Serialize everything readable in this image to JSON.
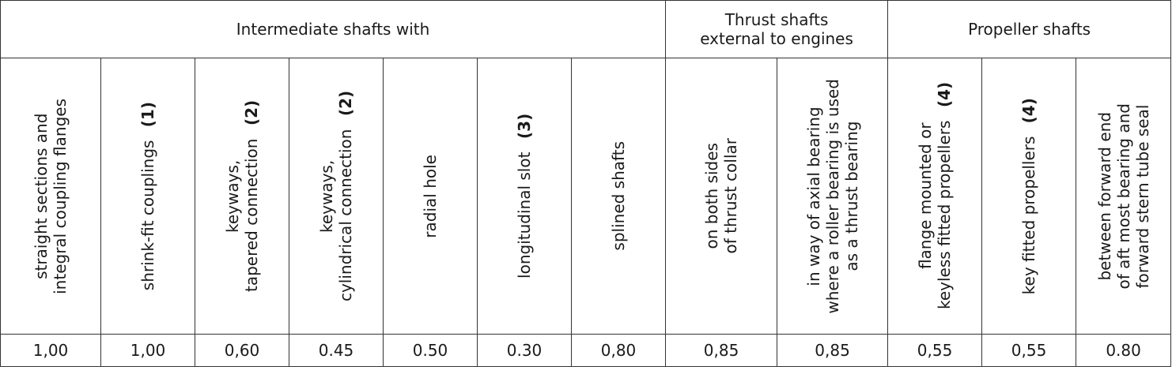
{
  "groups": {
    "intermediate": "Intermediate shafts with",
    "thrust": "Thrust shafts\nexternal to engines",
    "propeller": "Propeller shafts"
  },
  "columns": [
    {
      "label": "straight sections and\nintegral coupling flanges",
      "note": "",
      "value": "1,00"
    },
    {
      "label": "shrink-fit couplings",
      "note": "(1)",
      "value": "1,00"
    },
    {
      "label": "keyways,\ntapered connection",
      "note": "(2)",
      "value": "0,60"
    },
    {
      "label": "keyways,\ncylindrical connection",
      "note": "(2)",
      "value": "0.45"
    },
    {
      "label": "radial hole",
      "note": "",
      "value": "0.50"
    },
    {
      "label": "longitudinal slot",
      "note": "(3)",
      "value": "0.30"
    },
    {
      "label": "splined shafts",
      "note": "",
      "value": "0,80"
    },
    {
      "label": "on both sides\nof thrust collar",
      "note": "",
      "value": "0,85"
    },
    {
      "label": "in way of axial bearing\nwhere a roller bearing is used\nas a thrust bearing",
      "note": "",
      "value": "0,85"
    },
    {
      "label": "flange mounted or\nkeyless fitted propellers",
      "note": "(4)",
      "value": "0,55"
    },
    {
      "label": "key fitted propellers",
      "note": "(4)",
      "value": "0,55"
    },
    {
      "label": "between forward end\nof aft most bearing and\nforward stern tube seal",
      "note": "",
      "value": "0.80"
    }
  ]
}
